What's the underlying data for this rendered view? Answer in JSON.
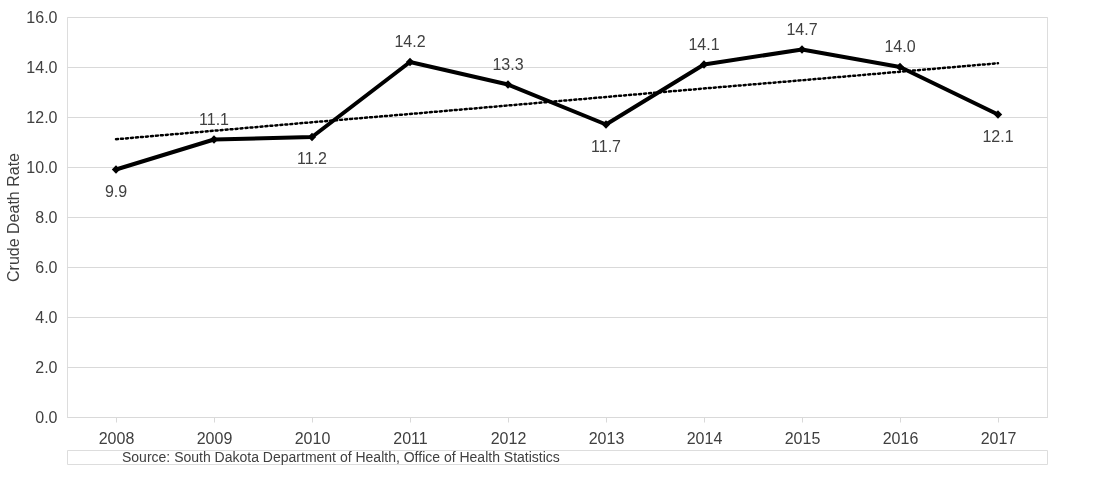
{
  "chart_data": {
    "type": "line",
    "ylabel": "Crude Death Rate",
    "categories": [
      "2008",
      "2009",
      "2010",
      "2011",
      "2012",
      "2013",
      "2014",
      "2015",
      "2016",
      "2017"
    ],
    "series": [
      {
        "color": "#000000",
        "marker": "diamond",
        "line_style": "solid",
        "values": [
          9.9,
          11.1,
          11.2,
          14.2,
          13.3,
          11.7,
          14.1,
          14.7,
          14.0,
          12.1
        ],
        "value_labels": [
          "9.9",
          "11.1",
          "11.2",
          "14.2",
          "13.3",
          "11.7",
          "14.1",
          "14.7",
          "14.0",
          "12.1"
        ]
      },
      {
        "type": "line",
        "color": "#000000",
        "marker": "none",
        "line_style": "dotted",
        "values": [
          11.11,
          11.45,
          11.79,
          12.12,
          12.46,
          12.8,
          13.14,
          13.47,
          13.81,
          14.15
        ]
      }
    ],
    "ylim": [
      0,
      16
    ],
    "yticks": [
      {
        "value": 0,
        "label": "0.0"
      },
      {
        "value": 2,
        "label": "2.0"
      },
      {
        "value": 4,
        "label": "4.0"
      },
      {
        "value": 6,
        "label": "6.0"
      },
      {
        "value": 8,
        "label": "8.0"
      },
      {
        "value": 10,
        "label": "10.0"
      },
      {
        "value": 12,
        "label": "12.0"
      },
      {
        "value": 14,
        "label": "14.0"
      },
      {
        "value": 16,
        "label": "16.0"
      }
    ],
    "grid": "y",
    "annotations": [
      "Source: South Dakota Department of Health, Office of Health Statistics"
    ]
  }
}
